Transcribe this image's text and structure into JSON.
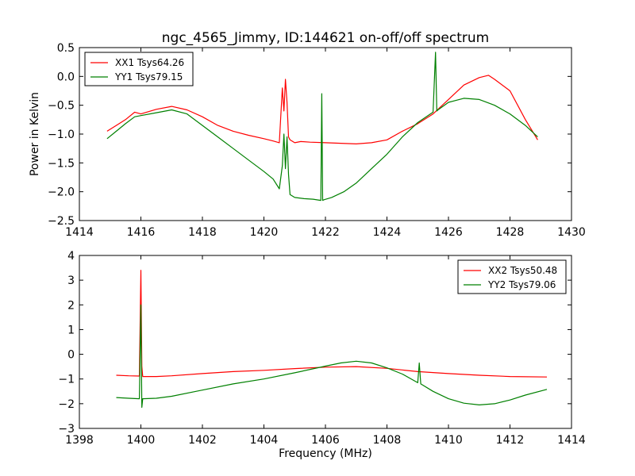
{
  "figure_title": "ngc_4565_Jimmy, ID:144621 on-off/off spectrum",
  "colors": {
    "xx": "#ff0000",
    "yy": "#008000"
  },
  "chart_data": [
    {
      "type": "line",
      "xlim": [
        1414,
        1430
      ],
      "ylim": [
        -2.5,
        0.5
      ],
      "xticks": [
        1414,
        1416,
        1418,
        1420,
        1422,
        1424,
        1426,
        1428,
        1430
      ],
      "yticks": [
        -2.5,
        -2.0,
        -1.5,
        -1.0,
        -0.5,
        0.0,
        0.5
      ],
      "xticklabels": [
        "1414",
        "1416",
        "1418",
        "1420",
        "1422",
        "1424",
        "1426",
        "1428",
        "1430"
      ],
      "yticklabels": [
        "−2.5",
        "−2.0",
        "−1.5",
        "−1.0",
        "−0.5",
        "0.0",
        "0.5"
      ],
      "xlabel": "",
      "ylabel": "Power in Kelvin",
      "legend_position": "top-left",
      "series": [
        {
          "name": "XX1 Tsys64.26",
          "color": "#ff0000",
          "x": [
            1414.9,
            1415.2,
            1415.5,
            1415.8,
            1416.0,
            1416.5,
            1417.0,
            1417.5,
            1418.0,
            1418.5,
            1419.0,
            1419.5,
            1420.0,
            1420.3,
            1420.5,
            1420.6,
            1420.65,
            1420.7,
            1420.75,
            1420.8,
            1420.85,
            1421.0,
            1421.2,
            1421.5,
            1422.0,
            1422.5,
            1423.0,
            1423.5,
            1424.0,
            1424.5,
            1425.0,
            1425.5,
            1426.0,
            1426.5,
            1427.0,
            1427.3,
            1427.5,
            1428.0,
            1428.5,
            1428.9
          ],
          "y": [
            -0.95,
            -0.85,
            -0.75,
            -0.62,
            -0.65,
            -0.57,
            -0.52,
            -0.58,
            -0.7,
            -0.85,
            -0.95,
            -1.02,
            -1.08,
            -1.12,
            -1.15,
            -0.2,
            -0.6,
            -0.05,
            -0.45,
            -1.05,
            -1.1,
            -1.15,
            -1.13,
            -1.14,
            -1.15,
            -1.16,
            -1.17,
            -1.15,
            -1.1,
            -0.95,
            -0.82,
            -0.65,
            -0.4,
            -0.15,
            -0.02,
            0.02,
            -0.05,
            -0.25,
            -0.75,
            -1.1
          ]
        },
        {
          "name": "YY1 Tsys79.15",
          "color": "#008000",
          "x": [
            1414.9,
            1415.2,
            1415.5,
            1415.8,
            1416.0,
            1416.5,
            1417.0,
            1417.5,
            1418.0,
            1418.5,
            1419.0,
            1419.5,
            1420.0,
            1420.3,
            1420.5,
            1420.6,
            1420.65,
            1420.7,
            1420.75,
            1420.8,
            1420.85,
            1421.0,
            1421.3,
            1421.6,
            1421.85,
            1421.88,
            1421.91,
            1421.95,
            1422.2,
            1422.6,
            1423.0,
            1423.5,
            1424.0,
            1424.5,
            1425.0,
            1425.5,
            1425.58,
            1425.62,
            1425.66,
            1426.0,
            1426.5,
            1427.0,
            1427.5,
            1428.0,
            1428.5,
            1428.9
          ],
          "y": [
            -1.08,
            -0.95,
            -0.82,
            -0.7,
            -0.68,
            -0.63,
            -0.58,
            -0.65,
            -0.85,
            -1.05,
            -1.25,
            -1.45,
            -1.65,
            -1.78,
            -1.95,
            -1.55,
            -1.0,
            -1.6,
            -1.05,
            -1.7,
            -2.05,
            -2.1,
            -2.12,
            -2.13,
            -2.15,
            -0.3,
            -2.15,
            -2.14,
            -2.1,
            -2.0,
            -1.85,
            -1.6,
            -1.35,
            -1.05,
            -0.8,
            -0.62,
            0.42,
            -0.6,
            -0.58,
            -0.45,
            -0.38,
            -0.4,
            -0.5,
            -0.65,
            -0.85,
            -1.05
          ]
        }
      ]
    },
    {
      "type": "line",
      "xlim": [
        1398,
        1414
      ],
      "ylim": [
        -3,
        4
      ],
      "xticks": [
        1398,
        1400,
        1402,
        1404,
        1406,
        1408,
        1410,
        1412,
        1414
      ],
      "yticks": [
        -3,
        -2,
        -1,
        0,
        1,
        2,
        3,
        4
      ],
      "xticklabels": [
        "1398",
        "1400",
        "1402",
        "1404",
        "1406",
        "1408",
        "1410",
        "1412",
        "1414"
      ],
      "yticklabels": [
        "−3",
        "−2",
        "−1",
        "0",
        "1",
        "2",
        "3",
        "4"
      ],
      "xlabel": "Frequency (MHz)",
      "ylabel": "",
      "legend_position": "top-right",
      "series": [
        {
          "name": "XX2 Tsys50.48",
          "color": "#ff0000",
          "x": [
            1399.2,
            1399.6,
            1399.95,
            1400.0,
            1400.03,
            1400.06,
            1400.5,
            1401.0,
            1402.0,
            1403.0,
            1404.0,
            1405.0,
            1406.0,
            1407.0,
            1408.0,
            1409.0,
            1410.0,
            1411.0,
            1412.0,
            1413.2
          ],
          "y": [
            -0.85,
            -0.87,
            -0.88,
            3.4,
            -0.5,
            -0.9,
            -0.9,
            -0.87,
            -0.78,
            -0.7,
            -0.65,
            -0.58,
            -0.52,
            -0.5,
            -0.57,
            -0.7,
            -0.78,
            -0.85,
            -0.9,
            -0.92
          ]
        },
        {
          "name": "YY2 Tsys79.06",
          "color": "#008000",
          "x": [
            1399.2,
            1399.6,
            1399.95,
            1400.0,
            1400.03,
            1400.06,
            1400.5,
            1401.0,
            1402.0,
            1403.0,
            1404.0,
            1405.0,
            1406.0,
            1406.5,
            1407.0,
            1407.5,
            1408.0,
            1408.5,
            1409.0,
            1409.05,
            1409.1,
            1409.5,
            1410.0,
            1410.5,
            1411.0,
            1411.5,
            1412.0,
            1412.5,
            1413.2
          ],
          "y": [
            -1.75,
            -1.78,
            -1.8,
            2.0,
            -2.15,
            -1.8,
            -1.78,
            -1.7,
            -1.45,
            -1.2,
            -1.0,
            -0.75,
            -0.48,
            -0.35,
            -0.28,
            -0.35,
            -0.55,
            -0.8,
            -1.15,
            -0.35,
            -1.2,
            -1.5,
            -1.8,
            -1.98,
            -2.05,
            -2.0,
            -1.85,
            -1.65,
            -1.42
          ]
        }
      ]
    }
  ]
}
